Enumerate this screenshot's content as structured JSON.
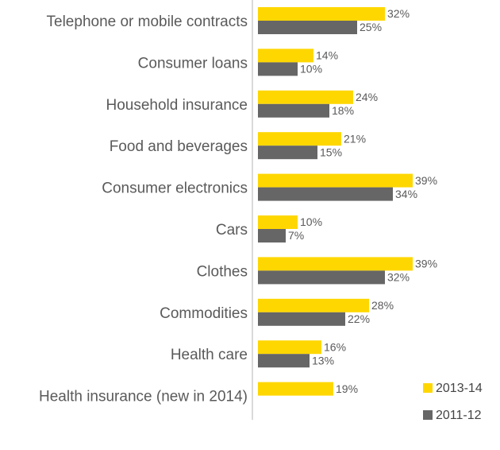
{
  "chart_data": {
    "type": "bar",
    "orientation": "horizontal",
    "categories": [
      "Telephone or mobile contracts",
      "Consumer loans",
      "Household insurance",
      "Food and beverages",
      "Consumer electronics",
      "Cars",
      "Clothes",
      "Commodities",
      "Health care",
      "Health insurance (new in 2014)"
    ],
    "series": [
      {
        "name": "2013-14",
        "color": "#FFD700",
        "values": [
          32,
          14,
          24,
          21,
          39,
          10,
          39,
          28,
          16,
          19
        ],
        "labels": [
          "32%",
          "14%",
          "24%",
          "21%",
          "39%",
          "10%",
          "39%",
          "28%",
          "16%",
          "19%"
        ]
      },
      {
        "name": "2011-12",
        "color": "#666666",
        "values": [
          25,
          10,
          18,
          15,
          34,
          7,
          32,
          22,
          13,
          null
        ],
        "labels": [
          "25%",
          "10%",
          "18%",
          "15%",
          "34%",
          "7%",
          "32%",
          "22%",
          "13%",
          null
        ]
      }
    ],
    "xlim": [
      0,
      40
    ],
    "grid": false,
    "legend_position": "bottom-right"
  }
}
